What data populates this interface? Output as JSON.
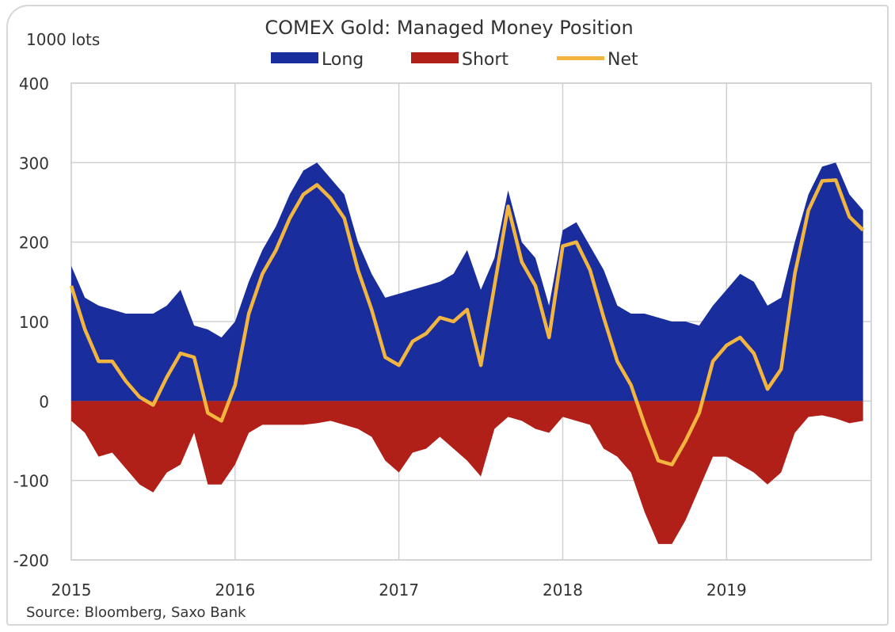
{
  "chart_data": {
    "type": "area",
    "title": "COMEX Gold: Managed Money Position",
    "ylabel": "1000 lots",
    "xlabel": "",
    "source": "Source: Bloomberg, Saxo Bank",
    "ylim": [
      -200,
      400
    ],
    "yticks": [
      "400",
      "300",
      "200",
      "100",
      "0",
      "-100",
      "-200"
    ],
    "ytick_values": [
      400,
      300,
      200,
      100,
      0,
      -100,
      -200
    ],
    "xticks": [
      "2015",
      "2016",
      "2017",
      "2018",
      "2019"
    ],
    "x_unit": "months since Jan 2015",
    "xlim": [
      0,
      58.6
    ],
    "grid": true,
    "legend_position": "top-center",
    "legend": [
      "Long",
      "Short",
      "Net"
    ],
    "colors": {
      "Long": "#1a2d9c",
      "Short": "#b01f18",
      "Net": "#f2b640"
    },
    "x": [
      0,
      1,
      2,
      3,
      4,
      5,
      6,
      7,
      8,
      9,
      10,
      11,
      12,
      13,
      14,
      15,
      16,
      17,
      18,
      19,
      20,
      21,
      22,
      23,
      24,
      25,
      26,
      27,
      28,
      29,
      30,
      31,
      32,
      33,
      34,
      35,
      36,
      37,
      38,
      39,
      40,
      41,
      42,
      43,
      44,
      45,
      46,
      47,
      48,
      49,
      50,
      51,
      52,
      53,
      54,
      55,
      56,
      57,
      58
    ],
    "series": [
      {
        "name": "Long",
        "type": "area",
        "values": [
          170,
          130,
          120,
          115,
          110,
          110,
          110,
          120,
          140,
          95,
          90,
          80,
          100,
          150,
          190,
          220,
          260,
          290,
          300,
          280,
          260,
          200,
          160,
          130,
          135,
          140,
          145,
          150,
          160,
          190,
          140,
          180,
          265,
          200,
          180,
          120,
          215,
          225,
          195,
          165,
          120,
          110,
          110,
          105,
          100,
          100,
          95,
          120,
          140,
          160,
          150,
          120,
          130,
          200,
          260,
          295,
          300,
          260,
          240
        ]
      },
      {
        "name": "Short",
        "type": "area",
        "values": [
          -25,
          -40,
          -70,
          -65,
          -85,
          -105,
          -115,
          -90,
          -80,
          -40,
          -105,
          -105,
          -80,
          -40,
          -30,
          -30,
          -30,
          -30,
          -28,
          -25,
          -30,
          -35,
          -45,
          -75,
          -90,
          -65,
          -60,
          -45,
          -60,
          -75,
          -95,
          -35,
          -20,
          -25,
          -35,
          -40,
          -20,
          -25,
          -30,
          -60,
          -70,
          -90,
          -140,
          -180,
          -180,
          -150,
          -110,
          -70,
          -70,
          -80,
          -90,
          -105,
          -90,
          -40,
          -20,
          -18,
          -22,
          -28,
          -25
        ]
      },
      {
        "name": "Net",
        "type": "line",
        "values": [
          145,
          90,
          50,
          50,
          25,
          5,
          -5,
          30,
          60,
          55,
          -15,
          -25,
          20,
          110,
          160,
          190,
          230,
          260,
          272,
          255,
          230,
          165,
          115,
          55,
          45,
          75,
          85,
          105,
          100,
          115,
          45,
          145,
          245,
          175,
          145,
          80,
          195,
          200,
          165,
          105,
          50,
          20,
          -30,
          -75,
          -80,
          -50,
          -15,
          50,
          70,
          80,
          60,
          15,
          40,
          160,
          240,
          277,
          278,
          232,
          215
        ]
      }
    ]
  }
}
